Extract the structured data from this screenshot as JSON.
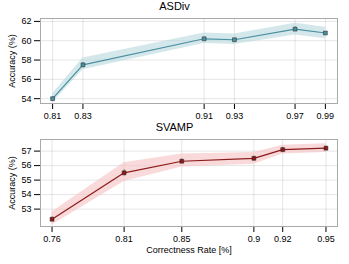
{
  "chart_data": [
    {
      "type": "line",
      "title": "ASDiv",
      "ylabel": "Accuracy (%)",
      "x": [
        0.81,
        0.83,
        0.91,
        0.93,
        0.97,
        0.99
      ],
      "series": [
        {
          "type": "area",
          "color": "#b8d8e0",
          "lower": [
            53.6,
            57.0,
            59.7,
            59.6,
            60.6,
            60.2
          ],
          "upper": [
            54.5,
            58.2,
            60.8,
            60.7,
            61.8,
            61.4
          ]
        },
        {
          "type": "line",
          "color": "#4a8fa0",
          "marker": "square",
          "values": [
            54.0,
            57.5,
            60.2,
            60.1,
            61.2,
            60.8
          ],
          "yerr": [
            0.15,
            0.2,
            0.15,
            0.15,
            0.2,
            0.15
          ]
        }
      ],
      "xlim": [
        0.802,
        0.998
      ],
      "xticks": [
        0.81,
        0.83,
        0.91,
        0.93,
        0.97,
        0.99
      ],
      "ylim": [
        53.5,
        62.3
      ],
      "yticks": [
        54,
        56,
        58,
        60,
        62
      ],
      "grid": true
    },
    {
      "type": "line",
      "title": "SVAMP",
      "ylabel": "Accuracy (%)",
      "xlabel": "Correctness Rate [%]",
      "x": [
        0.76,
        0.81,
        0.85,
        0.9,
        0.92,
        0.95
      ],
      "series": [
        {
          "type": "area",
          "color": "#f5c0c0",
          "lower": [
            51.9,
            54.9,
            55.9,
            56.1,
            56.8,
            56.9
          ],
          "upper": [
            52.8,
            56.2,
            56.8,
            56.9,
            57.4,
            57.5
          ]
        },
        {
          "type": "line",
          "color": "#8b1a1a",
          "marker": "square",
          "values": [
            52.3,
            55.5,
            56.3,
            56.5,
            57.1,
            57.2
          ],
          "yerr": [
            0.15,
            0.2,
            0.15,
            0.15,
            0.15,
            0.15
          ]
        }
      ],
      "xlim": [
        0.752,
        0.958
      ],
      "xticks": [
        0.76,
        0.81,
        0.85,
        0.9,
        0.92,
        0.95
      ],
      "ylim": [
        51.8,
        57.8
      ],
      "yticks": [
        53,
        54,
        55,
        56,
        57
      ],
      "grid": true
    }
  ]
}
